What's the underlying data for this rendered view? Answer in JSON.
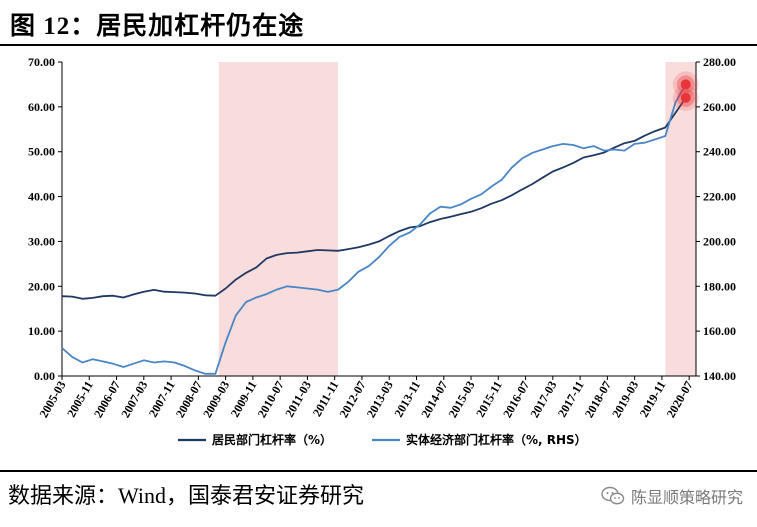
{
  "figure": {
    "title": "图 12：居民加杠杆仍在途"
  },
  "source_note": "数据来源：Wind，国泰君安证券研究",
  "watermark": {
    "text": "陈显顺策略研究",
    "icon": "wechat-icon"
  },
  "colors": {
    "series_household": "#1f3864",
    "series_corporate": "#4a86c5",
    "shade": "#f9dcdc",
    "highlight": "#e8353a"
  },
  "chart_data": {
    "type": "line",
    "title": "",
    "xlabel": "",
    "ylabel_left": "",
    "ylabel_right": "",
    "x_start": "2005-03",
    "x_end": "2020-09",
    "x_tick_labels": [
      "2005-03",
      "2005-11",
      "2006-07",
      "2007-03",
      "2007-11",
      "2008-07",
      "2009-03",
      "2009-11",
      "2010-07",
      "2011-03",
      "2011-11",
      "2012-07",
      "2013-03",
      "2013-11",
      "2014-07",
      "2015-03",
      "2015-11",
      "2016-07",
      "2017-03",
      "2017-11",
      "2018-07",
      "2019-03",
      "2019-11",
      "2020-07"
    ],
    "y_left": {
      "min": 0,
      "max": 70,
      "step": 10,
      "tick_labels": [
        "0.00",
        "10.00",
        "20.00",
        "30.00",
        "40.00",
        "50.00",
        "60.00",
        "70.00"
      ]
    },
    "y_right": {
      "min": 140,
      "max": 280,
      "step": 20,
      "tick_labels": [
        "140.00",
        "160.00",
        "180.00",
        "200.00",
        "220.00",
        "240.00",
        "260.00",
        "280.00"
      ]
    },
    "grid": false,
    "legend_position": "bottom",
    "shaded_periods": [
      {
        "start": "2009-01",
        "end": "2011-12"
      },
      {
        "start": "2019-12",
        "end": "2020-09"
      }
    ],
    "highlights": [
      {
        "series": "居民部门杠杆率（%）",
        "x": "2020-06",
        "y": 62.0
      },
      {
        "series": "实体经济部门杠杆率（%, RHS）",
        "x": "2020-06",
        "y": 270.0
      }
    ],
    "series": [
      {
        "name": "居民部门杠杆率（%）",
        "axis": "left",
        "x": [
          "2005-03",
          "2005-06",
          "2005-09",
          "2005-12",
          "2006-03",
          "2006-06",
          "2006-09",
          "2006-12",
          "2007-03",
          "2007-06",
          "2007-09",
          "2007-12",
          "2008-03",
          "2008-06",
          "2008-09",
          "2008-12",
          "2009-03",
          "2009-06",
          "2009-09",
          "2009-12",
          "2010-03",
          "2010-06",
          "2010-09",
          "2010-12",
          "2011-03",
          "2011-06",
          "2011-09",
          "2011-12",
          "2012-03",
          "2012-06",
          "2012-09",
          "2012-12",
          "2013-03",
          "2013-06",
          "2013-09",
          "2013-12",
          "2014-03",
          "2014-06",
          "2014-09",
          "2014-12",
          "2015-03",
          "2015-06",
          "2015-09",
          "2015-12",
          "2016-03",
          "2016-06",
          "2016-09",
          "2016-12",
          "2017-03",
          "2017-06",
          "2017-09",
          "2017-12",
          "2018-03",
          "2018-06",
          "2018-09",
          "2018-12",
          "2019-03",
          "2019-06",
          "2019-09",
          "2019-12",
          "2020-03",
          "2020-06"
        ],
        "values": [
          17.8,
          17.7,
          17.2,
          17.4,
          17.8,
          17.9,
          17.5,
          18.2,
          18.8,
          19.2,
          18.8,
          18.7,
          18.6,
          18.4,
          18.0,
          17.9,
          19.5,
          21.5,
          23.0,
          24.2,
          26.2,
          27.0,
          27.4,
          27.5,
          27.8,
          28.1,
          28.0,
          27.9,
          28.3,
          28.7,
          29.3,
          30.0,
          31.2,
          32.3,
          33.1,
          33.4,
          34.3,
          35.0,
          35.5,
          36.1,
          36.6,
          37.4,
          38.4,
          39.2,
          40.3,
          41.6,
          42.8,
          44.2,
          45.6,
          46.5,
          47.5,
          48.7,
          49.2,
          49.8,
          50.9,
          51.9,
          52.4,
          53.6,
          54.6,
          55.4,
          58.7,
          62.0
        ]
      },
      {
        "name": "实体经济部门杠杆率（%, RHS）",
        "axis": "right",
        "x": [
          "2005-03",
          "2005-06",
          "2005-09",
          "2005-12",
          "2006-03",
          "2006-06",
          "2006-09",
          "2006-12",
          "2007-03",
          "2007-06",
          "2007-09",
          "2007-12",
          "2008-03",
          "2008-06",
          "2008-09",
          "2008-12",
          "2009-03",
          "2009-06",
          "2009-09",
          "2009-12",
          "2010-03",
          "2010-06",
          "2010-09",
          "2010-12",
          "2011-03",
          "2011-06",
          "2011-09",
          "2011-12",
          "2012-03",
          "2012-06",
          "2012-09",
          "2012-12",
          "2013-03",
          "2013-06",
          "2013-09",
          "2013-12",
          "2014-03",
          "2014-06",
          "2014-09",
          "2014-12",
          "2015-03",
          "2015-06",
          "2015-09",
          "2015-12",
          "2016-03",
          "2016-06",
          "2016-09",
          "2016-12",
          "2017-03",
          "2017-06",
          "2017-09",
          "2017-12",
          "2018-03",
          "2018-06",
          "2018-09",
          "2018-12",
          "2019-03",
          "2019-06",
          "2019-09",
          "2019-12",
          "2020-03",
          "2020-06"
        ],
        "values": [
          152.5,
          148.5,
          146.0,
          147.5,
          146.5,
          145.5,
          144.0,
          145.5,
          147.0,
          146.0,
          146.5,
          146.0,
          144.5,
          142.5,
          141.0,
          141.0,
          155.0,
          167.0,
          173.0,
          175.0,
          176.5,
          178.5,
          180.0,
          179.5,
          179.0,
          178.5,
          177.5,
          178.5,
          182.0,
          186.5,
          189.0,
          193.0,
          198.0,
          202.0,
          204.0,
          207.5,
          212.5,
          215.5,
          215.0,
          216.5,
          219.0,
          221.0,
          224.5,
          227.5,
          233.0,
          237.0,
          239.5,
          241.0,
          242.5,
          243.5,
          243.0,
          241.5,
          242.5,
          240.5,
          241.0,
          240.5,
          243.5,
          244.0,
          245.5,
          247.0,
          262.0,
          270.0
        ]
      }
    ]
  }
}
